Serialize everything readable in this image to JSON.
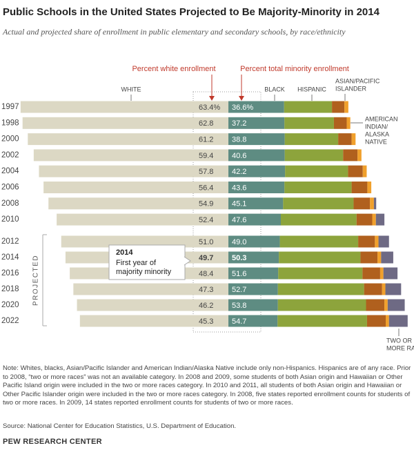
{
  "chart_data": {
    "type": "diverging-bar",
    "title": "Public Schools in the United States Projected to Be Majority-Minority in 2014",
    "subtitle": "Actual and projected share of enrollment in public elementary and secondary schools, by race/ethnicity",
    "categories": [
      "1997",
      "1998",
      "2000",
      "2002",
      "2004",
      "2006",
      "2008",
      "2010",
      "2012",
      "2014",
      "2016",
      "2018",
      "2020",
      "2022"
    ],
    "series": [
      {
        "name": [
          "WHITE"
        ],
        "color": "#dcd8c4",
        "column_label": "Percent white enrollment",
        "values": [
          63.4,
          62.8,
          61.2,
          59.4,
          57.8,
          56.4,
          54.9,
          52.4,
          51.0,
          49.7,
          48.4,
          47.3,
          46.2,
          45.3
        ],
        "value_labels": [
          "63.4%",
          "62.8",
          "61.2",
          "59.4",
          "57.8",
          "56.4",
          "54.9",
          "52.4",
          "51.0",
          "49.7",
          "48.4",
          "47.3",
          "46.2",
          "45.3"
        ]
      },
      {
        "name": [
          "BLACK"
        ],
        "color": "#5e8c82",
        "values": [
          17.0,
          17.1,
          17.2,
          17.2,
          17.3,
          17.1,
          16.7,
          16.0,
          15.7,
          15.4,
          15.2,
          15.1,
          15.1,
          15.0
        ]
      },
      {
        "name": [
          "HISPANIC"
        ],
        "color": "#8da43c",
        "values": [
          14.6,
          15.1,
          16.3,
          17.8,
          19.2,
          20.5,
          21.5,
          23.1,
          23.9,
          24.9,
          25.7,
          26.3,
          26.9,
          27.3
        ]
      },
      {
        "name": [
          "ASIAN/PACIFIC",
          "ISLANDER"
        ],
        "color": "#b0601e",
        "values": [
          3.8,
          3.9,
          4.1,
          4.4,
          4.5,
          4.8,
          5.0,
          4.8,
          5.1,
          5.2,
          5.4,
          5.5,
          5.6,
          5.7
        ]
      },
      {
        "name": [
          "AMERICAN",
          "INDIAN/",
          "ALASKA",
          "NATIVE"
        ],
        "color": "#f0a02c",
        "values": [
          1.2,
          1.1,
          1.2,
          1.2,
          1.2,
          1.2,
          1.2,
          1.1,
          1.1,
          1.1,
          1.0,
          1.0,
          1.0,
          1.0
        ]
      },
      {
        "name": [
          "TWO OR",
          "MORE RACES"
        ],
        "color": "#6e6a84",
        "values": [
          null,
          null,
          null,
          null,
          null,
          null,
          0.7,
          2.6,
          3.2,
          3.7,
          4.3,
          4.8,
          5.2,
          5.7
        ]
      }
    ],
    "minority_total": {
      "column_label": "Percent total minority enrollment",
      "values": [
        36.6,
        37.2,
        38.8,
        40.6,
        42.2,
        43.6,
        45.1,
        47.6,
        49.0,
        50.3,
        51.6,
        52.7,
        53.8,
        54.7
      ],
      "value_labels": [
        "36.6%",
        "37.2",
        "38.8",
        "40.6",
        "42.2",
        "43.6",
        "45.1",
        "47.6",
        "49.0",
        "50.3",
        "51.6",
        "52.7",
        "53.8",
        "54.7"
      ]
    },
    "projected_label": "PROJECTED",
    "callout": {
      "title": "2014",
      "lines": [
        "First year of",
        "majority minority"
      ]
    },
    "note": "Note: Whites, blacks, Asian/Pacific Islander and American Indian/Alaska Native include only non-Hispanics. Hispanics are of any race. Prior to 2008, “two or more races” was not an available category. In 2008 and 2009, some students of both Asian origin and Hawaiian or Other Pacific Island origin were included in the two or more races category. In 2010 and 2011, all students of both Asian origin and Hawaiian or Other Pacific Islander origin were included in the two or more races category. In 2008, five states reported enrollment counts for students of two or more races. In 2009, 14 states reported enrollment counts for students of two or more races.",
    "source": "Source: National Center for Education Statistics, U.S. Department of Education.",
    "footer": "PEW RESEARCH CENTER"
  }
}
